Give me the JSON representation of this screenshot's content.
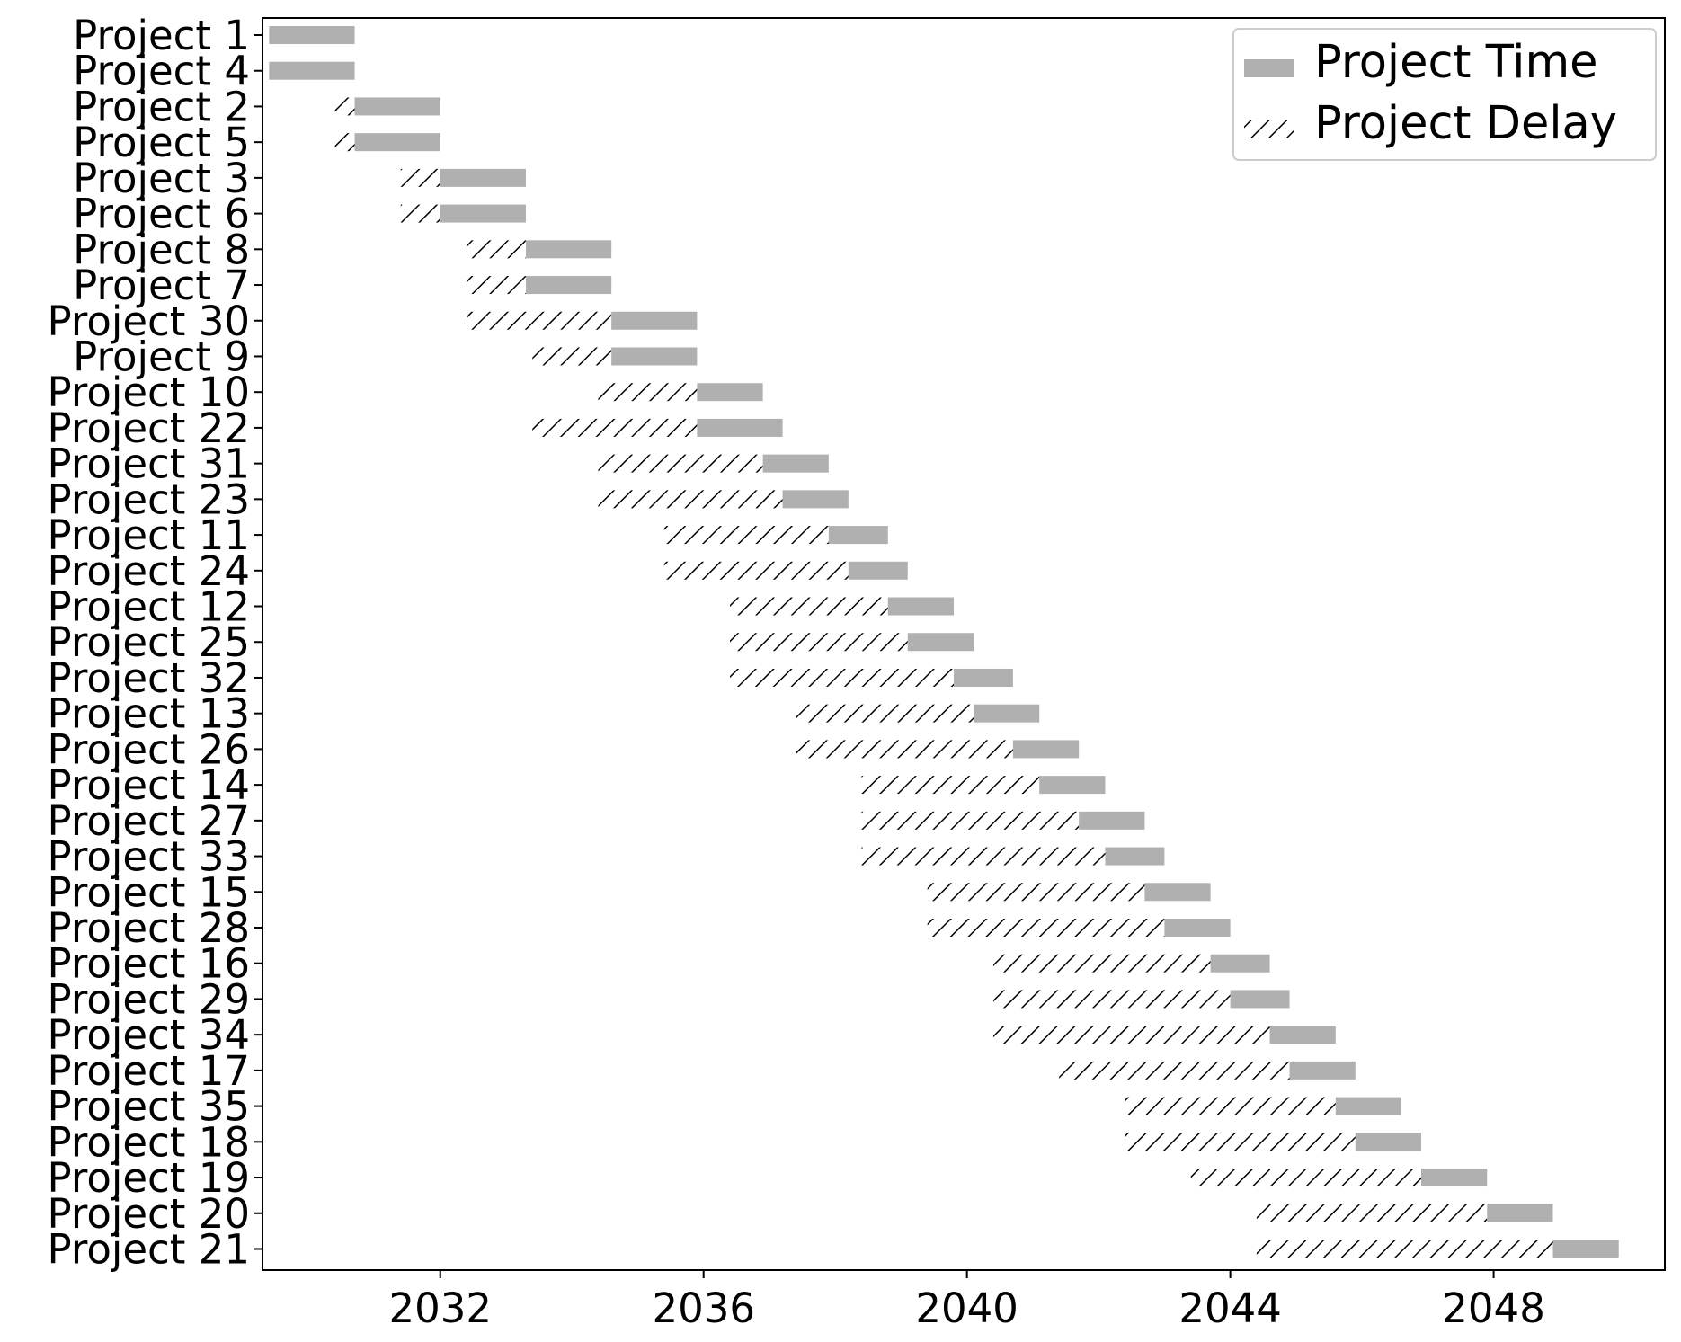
{
  "chart_data": {
    "type": "bar",
    "orientation": "horizontal-gantt",
    "title": "",
    "xlabel": "",
    "ylabel": "",
    "xlim": [
      2029.3,
      2050.6
    ],
    "xticks": [
      2032,
      2036,
      2040,
      2044,
      2048
    ],
    "grid": false,
    "legend": {
      "position": "top-right",
      "entries": [
        {
          "name": "Project Time",
          "style": "solid",
          "color": "#b0b0b0"
        },
        {
          "name": "Project Delay",
          "style": "hatched",
          "color": "#000000"
        }
      ]
    },
    "series": [
      {
        "name": "Project Delay",
        "field": "delay_start to time_start"
      },
      {
        "name": "Project Time",
        "field": "time_start to time_end"
      }
    ],
    "tasks": [
      {
        "label": "Project 1",
        "delay_start": 2029.4,
        "time_start": 2029.4,
        "time_end": 2030.7
      },
      {
        "label": "Project 4",
        "delay_start": 2029.4,
        "time_start": 2029.4,
        "time_end": 2030.7
      },
      {
        "label": "Project 2",
        "delay_start": 2030.4,
        "time_start": 2030.7,
        "time_end": 2032.0
      },
      {
        "label": "Project 5",
        "delay_start": 2030.4,
        "time_start": 2030.7,
        "time_end": 2032.0
      },
      {
        "label": "Project 3",
        "delay_start": 2031.4,
        "time_start": 2032.0,
        "time_end": 2033.3
      },
      {
        "label": "Project 6",
        "delay_start": 2031.4,
        "time_start": 2032.0,
        "time_end": 2033.3
      },
      {
        "label": "Project 8",
        "delay_start": 2032.4,
        "time_start": 2033.3,
        "time_end": 2034.6
      },
      {
        "label": "Project 7",
        "delay_start": 2032.4,
        "time_start": 2033.3,
        "time_end": 2034.6
      },
      {
        "label": "Project 30",
        "delay_start": 2032.4,
        "time_start": 2034.6,
        "time_end": 2035.9
      },
      {
        "label": "Project 9",
        "delay_start": 2033.4,
        "time_start": 2034.6,
        "time_end": 2035.9
      },
      {
        "label": "Project 10",
        "delay_start": 2034.4,
        "time_start": 2035.9,
        "time_end": 2036.9
      },
      {
        "label": "Project 22",
        "delay_start": 2033.4,
        "time_start": 2035.9,
        "time_end": 2037.2
      },
      {
        "label": "Project 31",
        "delay_start": 2034.4,
        "time_start": 2036.9,
        "time_end": 2037.9
      },
      {
        "label": "Project 23",
        "delay_start": 2034.4,
        "time_start": 2037.2,
        "time_end": 2038.2
      },
      {
        "label": "Project 11",
        "delay_start": 2035.4,
        "time_start": 2037.9,
        "time_end": 2038.8
      },
      {
        "label": "Project 24",
        "delay_start": 2035.4,
        "time_start": 2038.2,
        "time_end": 2039.1
      },
      {
        "label": "Project 12",
        "delay_start": 2036.4,
        "time_start": 2038.8,
        "time_end": 2039.8
      },
      {
        "label": "Project 25",
        "delay_start": 2036.4,
        "time_start": 2039.1,
        "time_end": 2040.1
      },
      {
        "label": "Project 32",
        "delay_start": 2036.4,
        "time_start": 2039.8,
        "time_end": 2040.7
      },
      {
        "label": "Project 13",
        "delay_start": 2037.4,
        "time_start": 2040.1,
        "time_end": 2041.1
      },
      {
        "label": "Project 26",
        "delay_start": 2037.4,
        "time_start": 2040.7,
        "time_end": 2041.7
      },
      {
        "label": "Project 14",
        "delay_start": 2038.4,
        "time_start": 2041.1,
        "time_end": 2042.1
      },
      {
        "label": "Project 27",
        "delay_start": 2038.4,
        "time_start": 2041.7,
        "time_end": 2042.7
      },
      {
        "label": "Project 33",
        "delay_start": 2038.4,
        "time_start": 2042.1,
        "time_end": 2043.0
      },
      {
        "label": "Project 15",
        "delay_start": 2039.4,
        "time_start": 2042.7,
        "time_end": 2043.7
      },
      {
        "label": "Project 28",
        "delay_start": 2039.4,
        "time_start": 2043.0,
        "time_end": 2044.0
      },
      {
        "label": "Project 16",
        "delay_start": 2040.4,
        "time_start": 2043.7,
        "time_end": 2044.6
      },
      {
        "label": "Project 29",
        "delay_start": 2040.4,
        "time_start": 2044.0,
        "time_end": 2044.9
      },
      {
        "label": "Project 34",
        "delay_start": 2040.4,
        "time_start": 2044.6,
        "time_end": 2045.6
      },
      {
        "label": "Project 17",
        "delay_start": 2041.4,
        "time_start": 2044.9,
        "time_end": 2045.9
      },
      {
        "label": "Project 35",
        "delay_start": 2042.4,
        "time_start": 2045.6,
        "time_end": 2046.6
      },
      {
        "label": "Project 18",
        "delay_start": 2042.4,
        "time_start": 2045.9,
        "time_end": 2046.9
      },
      {
        "label": "Project 19",
        "delay_start": 2043.4,
        "time_start": 2046.9,
        "time_end": 2047.9
      },
      {
        "label": "Project 20",
        "delay_start": 2044.4,
        "time_start": 2047.9,
        "time_end": 2048.9
      },
      {
        "label": "Project 21",
        "delay_start": 2044.4,
        "time_start": 2048.9,
        "time_end": 2049.9
      }
    ]
  }
}
